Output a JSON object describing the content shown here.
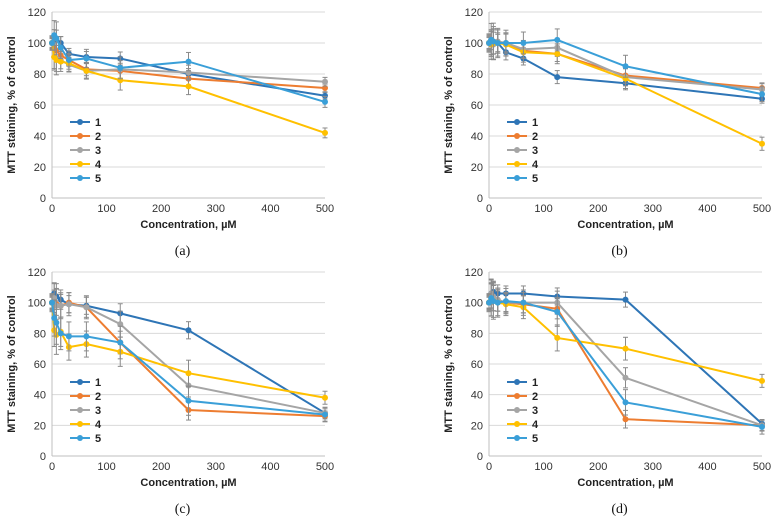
{
  "chart_data": [
    {
      "type": "line",
      "panel_label": "(a)",
      "xlabel": "Concentration, µM",
      "ylabel": "MTT staining, % of control",
      "xlim": [
        0,
        500
      ],
      "ylim": [
        0,
        120
      ],
      "xticks": [
        "0",
        "100",
        "200",
        "300",
        "400",
        "500"
      ],
      "yticks": [
        "0",
        "20",
        "40",
        "60",
        "80",
        "100",
        "120"
      ],
      "x": [
        0,
        4,
        8,
        16,
        31,
        63,
        125,
        250,
        500
      ],
      "series": [
        {
          "name": "1",
          "values": [
            100,
            103,
            102,
            100,
            93,
            91,
            90,
            80,
            66
          ]
        },
        {
          "name": "2",
          "values": [
            100,
            97,
            95,
            92,
            89,
            83,
            82,
            77,
            71
          ]
        },
        {
          "name": "3",
          "values": [
            100,
            91,
            90,
            89,
            86,
            82,
            83,
            81,
            75
          ]
        },
        {
          "name": "4",
          "values": [
            100,
            91,
            89,
            88,
            87,
            82,
            76,
            72,
            42
          ]
        },
        {
          "name": "5",
          "values": [
            100,
            105,
            103,
            97,
            89,
            90,
            84,
            88,
            62
          ]
        }
      ],
      "errors": [
        4,
        8,
        9,
        6,
        5,
        5,
        6,
        5,
        3
      ]
    },
    {
      "type": "line",
      "panel_label": "(b)",
      "xlabel": "Concentration, µM",
      "ylabel": "MTT staining, % of control",
      "xlim": [
        0,
        500
      ],
      "ylim": [
        0,
        120
      ],
      "xticks": [
        "0",
        "100",
        "200",
        "300",
        "400",
        "500"
      ],
      "yticks": [
        "0",
        "20",
        "40",
        "60",
        "80",
        "100",
        "120"
      ],
      "x": [
        0,
        4,
        8,
        16,
        31,
        63,
        125,
        250,
        500
      ],
      "series": [
        {
          "name": "1",
          "values": [
            100,
            102,
            100,
            100,
            94,
            90,
            78,
            74,
            64
          ]
        },
        {
          "name": "2",
          "values": [
            100,
            100,
            101,
            100,
            100,
            95,
            93,
            79,
            71
          ]
        },
        {
          "name": "3",
          "values": [
            100,
            100,
            99,
            101,
            100,
            96,
            97,
            78,
            70
          ]
        },
        {
          "name": "4",
          "values": [
            100,
            99,
            100,
            100,
            99,
            94,
            93,
            77,
            35
          ]
        },
        {
          "name": "5",
          "values": [
            100,
            102,
            101,
            100,
            100,
            100,
            102,
            85,
            67
          ]
        }
      ],
      "errors": [
        5,
        9,
        10,
        8,
        7,
        6,
        6,
        6,
        4
      ]
    },
    {
      "type": "line",
      "panel_label": "(c)",
      "xlabel": "Concentration, µM",
      "ylabel": "MTT staining, % of control",
      "xlim": [
        0,
        500
      ],
      "ylim": [
        0,
        120
      ],
      "xticks": [
        "0",
        "100",
        "200",
        "300",
        "400",
        "500"
      ],
      "yticks": [
        "0",
        "20",
        "40",
        "60",
        "80",
        "100",
        "120"
      ],
      "x": [
        0,
        4,
        8,
        16,
        31,
        63,
        125,
        250,
        500
      ],
      "series": [
        {
          "name": "1",
          "values": [
            100,
            106,
            104,
            102,
            99,
            98,
            93,
            82,
            28
          ]
        },
        {
          "name": "2",
          "values": [
            100,
            100,
            99,
            98,
            100,
            97,
            74,
            30,
            26
          ]
        },
        {
          "name": "3",
          "values": [
            100,
            103,
            98,
            98,
            99,
            97,
            86,
            46,
            28
          ]
        },
        {
          "name": "4",
          "values": [
            100,
            82,
            79,
            81,
            71,
            73,
            68,
            54,
            38
          ]
        },
        {
          "name": "5",
          "values": [
            100,
            90,
            87,
            80,
            78,
            78,
            74,
            36,
            27
          ]
        }
      ],
      "errors": [
        5,
        10,
        12,
        9,
        8,
        8,
        9,
        8,
        4
      ]
    },
    {
      "type": "line",
      "panel_label": "(d)",
      "xlabel": "Concentration, µM",
      "ylabel": "MTT staining, % of control",
      "xlim": [
        0,
        500
      ],
      "ylim": [
        0,
        120
      ],
      "xticks": [
        "0",
        "100",
        "200",
        "300",
        "400",
        "500"
      ],
      "yticks": [
        "0",
        "20",
        "40",
        "60",
        "80",
        "100",
        "120"
      ],
      "x": [
        0,
        4,
        8,
        16,
        31,
        63,
        125,
        250,
        500
      ],
      "series": [
        {
          "name": "1",
          "values": [
            100,
            106,
            107,
            106,
            106,
            106,
            104,
            102,
            21
          ]
        },
        {
          "name": "2",
          "values": [
            100,
            104,
            103,
            101,
            100,
            99,
            96,
            24,
            20
          ]
        },
        {
          "name": "3",
          "values": [
            100,
            106,
            104,
            102,
            100,
            100,
            100,
            51,
            20
          ]
        },
        {
          "name": "4",
          "values": [
            100,
            102,
            101,
            100,
            99,
            97,
            77,
            70,
            49
          ]
        },
        {
          "name": "5",
          "values": [
            100,
            103,
            101,
            100,
            101,
            100,
            94,
            35,
            19
          ]
        }
      ],
      "errors": [
        5,
        10,
        10,
        8,
        7,
        7,
        8,
        7,
        4
      ]
    }
  ],
  "colors": [
    "#2e75b6",
    "#ed7d31",
    "#a5a5a5",
    "#ffc000",
    "#3a9fd8"
  ]
}
